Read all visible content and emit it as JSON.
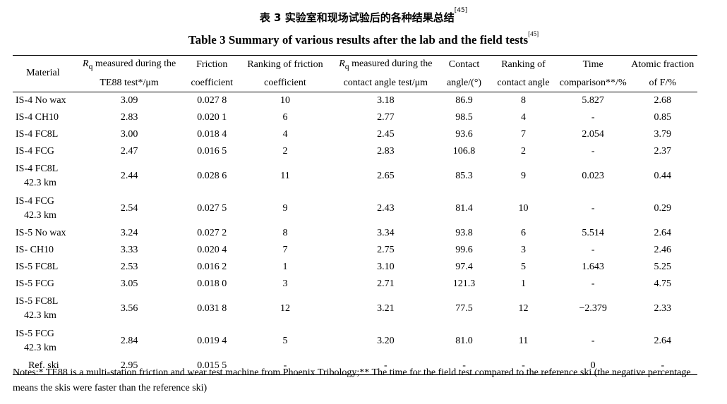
{
  "title_cn": {
    "text": "表 3   实验室和现场试验后的各种结果总结",
    "ref": "[45]"
  },
  "title_en": {
    "text": "Table 3    Summary of various results after the lab and the field tests",
    "ref": "[45]"
  },
  "headers": {
    "material": "Material",
    "rq_te88_sym": "R",
    "rq_te88_sub": "q",
    "rq_te88_line1": " measured during the",
    "rq_te88_line2": "TE88 test*/μm",
    "friction_line1": "Friction",
    "friction_line2": "coefficient",
    "rank_friction_line1": "Ranking of friction",
    "rank_friction_line2": "coefficient",
    "rq_contact_sym": "R",
    "rq_contact_sub": "q",
    "rq_contact_line1": " measured during the",
    "rq_contact_line2": "contact angle test/μm",
    "contact_line1": "Contact",
    "contact_line2": "angle/(°)",
    "rank_contact_line1": "Ranking of",
    "rank_contact_line2": "contact angle",
    "time_line1": "Time",
    "time_line2": "comparison**/%",
    "atomic_line1": "Atomic fraction",
    "atomic_line2": "of F/%"
  },
  "rows": [
    {
      "m1": "IS-4 No wax",
      "m2": "",
      "rq1": "3.09",
      "fc": "0.027 8",
      "rf": "10",
      "rq2": "3.18",
      "ca": "86.9",
      "rc": "8",
      "tc": "5.827",
      "af": "2.68"
    },
    {
      "m1": "IS-4 CH10",
      "m2": "",
      "rq1": "2.83",
      "fc": "0.020 1",
      "rf": "6",
      "rq2": "2.77",
      "ca": "98.5",
      "rc": "4",
      "tc": "-",
      "af": "0.85"
    },
    {
      "m1": "IS-4 FC8L",
      "m2": "",
      "rq1": "3.00",
      "fc": "0.018 4",
      "rf": "4",
      "rq2": "2.45",
      "ca": "93.6",
      "rc": "7",
      "tc": "2.054",
      "af": "3.79"
    },
    {
      "m1": "IS-4 FCG",
      "m2": "",
      "rq1": "2.47",
      "fc": "0.016 5",
      "rf": "2",
      "rq2": "2.83",
      "ca": "106.8",
      "rc": "2",
      "tc": "-",
      "af": "2.37"
    },
    {
      "m1": "IS-4 FC8L",
      "m2": "42.3 km",
      "rq1": "2.44",
      "fc": "0.028 6",
      "rf": "11",
      "rq2": "2.65",
      "ca": "85.3",
      "rc": "9",
      "tc": "0.023",
      "af": "0.44"
    },
    {
      "m1": "IS-4 FCG",
      "m2": "42.3 km",
      "rq1": "2.54",
      "fc": "0.027 5",
      "rf": "9",
      "rq2": "2.43",
      "ca": "81.4",
      "rc": "10",
      "tc": "-",
      "af": "0.29"
    },
    {
      "m1": "IS-5 No wax",
      "m2": "",
      "rq1": "3.24",
      "fc": "0.027 2",
      "rf": "8",
      "rq2": "3.34",
      "ca": "93.8",
      "rc": "6",
      "tc": "5.514",
      "af": "2.64"
    },
    {
      "m1": "IS- CH10",
      "m2": "",
      "rq1": "3.33",
      "fc": "0.020 4",
      "rf": "7",
      "rq2": "2.75",
      "ca": "99.6",
      "rc": "3",
      "tc": "-",
      "af": "2.46"
    },
    {
      "m1": "IS-5 FC8L",
      "m2": "",
      "rq1": "2.53",
      "fc": "0.016 2",
      "rf": "1",
      "rq2": "3.10",
      "ca": "97.4",
      "rc": "5",
      "tc": "1.643",
      "af": "5.25"
    },
    {
      "m1": "IS-5 FCG",
      "m2": "",
      "rq1": "3.05",
      "fc": "0.018 0",
      "rf": "3",
      "rq2": "2.71",
      "ca": "121.3",
      "rc": "1",
      "tc": "-",
      "af": "4.75"
    },
    {
      "m1": "IS-5 FC8L",
      "m2": "42.3 km",
      "rq1": "3.56",
      "fc": "0.031 8",
      "rf": "12",
      "rq2": "3.21",
      "ca": "77.5",
      "rc": "12",
      "tc": "−2.379",
      "af": "2.33"
    },
    {
      "m1": "IS-5 FCG",
      "m2": "42.3 km",
      "rq1": "2.84",
      "fc": "0.019 4",
      "rf": "5",
      "rq2": "3.20",
      "ca": "81.0",
      "rc": "11",
      "tc": "-",
      "af": "2.64"
    },
    {
      "m1": "Ref. ski",
      "m2": "",
      "rq1": "2.95",
      "fc": "0.015 5",
      "rf": "-",
      "rq2": "-",
      "ca": "-",
      "rc": "-",
      "tc": "0",
      "af": "-"
    }
  ],
  "notes": "Notes:* TE88 is a multi-station friction and wear test machine from Phoenix Tribology;** The time for the field test compared to the reference ski (the negative percentage means the skis were faster than the reference ski)"
}
